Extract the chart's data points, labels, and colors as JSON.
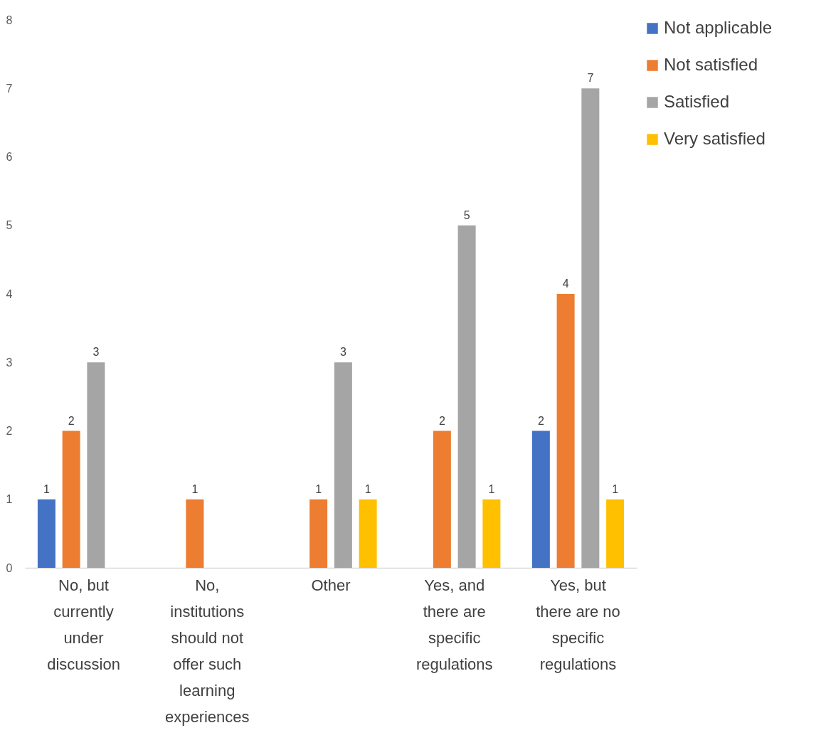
{
  "chart_data": {
    "type": "bar",
    "categories": [
      "No, but currently under discussion",
      "No, institutions should not offer such learning experiences",
      "Other",
      "Yes, and there are specific regulations",
      "Yes, but there are no specific regulations"
    ],
    "series": [
      {
        "name": "Not applicable",
        "color": "#4472c4",
        "values": [
          1,
          null,
          null,
          null,
          2
        ]
      },
      {
        "name": "Not satisfied",
        "color": "#ed7d31",
        "values": [
          2,
          1,
          1,
          2,
          4
        ]
      },
      {
        "name": "Satisfied",
        "color": "#a5a5a5",
        "values": [
          3,
          null,
          3,
          5,
          7
        ]
      },
      {
        "name": "Very satisfied",
        "color": "#ffc000",
        "values": [
          null,
          null,
          1,
          1,
          1
        ]
      }
    ],
    "ylim": [
      0,
      8
    ],
    "yticks": [
      0,
      1,
      2,
      3,
      4,
      5,
      6,
      7,
      8
    ],
    "grid": false,
    "legend": "right",
    "data_labels": true
  }
}
